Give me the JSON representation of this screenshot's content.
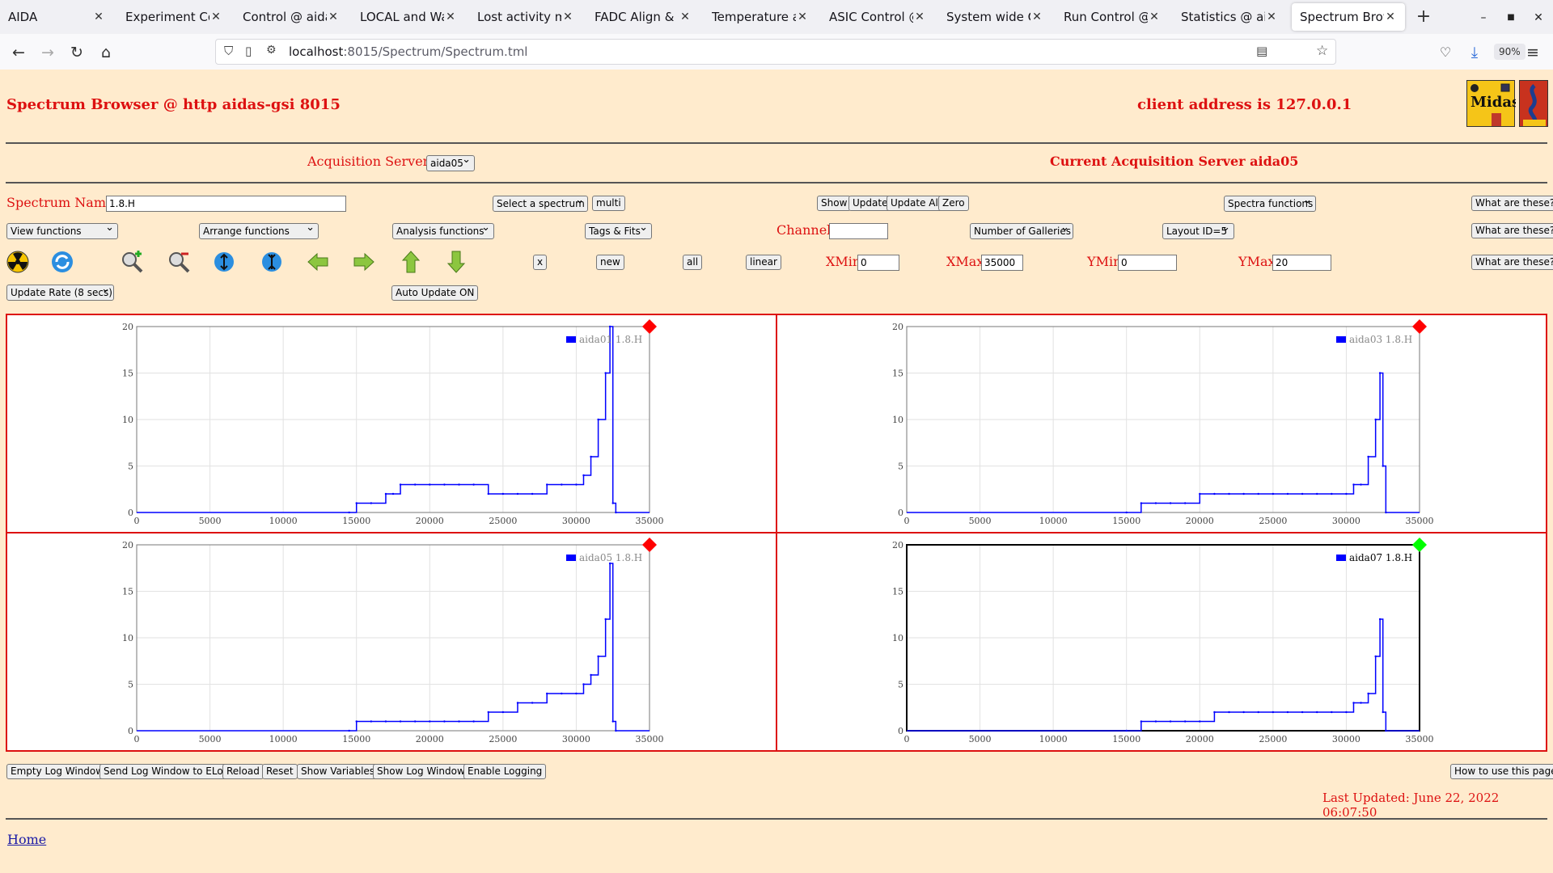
{
  "browser": {
    "tabs": [
      {
        "label": "AIDA",
        "active": false
      },
      {
        "label": "Experiment Cont",
        "active": false
      },
      {
        "label": "Control @ aidas-",
        "active": false
      },
      {
        "label": "LOCAL and Wave",
        "active": false
      },
      {
        "label": "Lost activity mon",
        "active": false
      },
      {
        "label": "FADC Align & Co",
        "active": false
      },
      {
        "label": "Temperature and",
        "active": false
      },
      {
        "label": "ASIC Control @ a",
        "active": false
      },
      {
        "label": "System wide Che",
        "active": false
      },
      {
        "label": "Run Control @ ai",
        "active": false
      },
      {
        "label": "Statistics @ aida",
        "active": false
      },
      {
        "label": "Spectrum Brows",
        "active": true
      }
    ],
    "url_host": "localhost",
    "url_rest": ":8015/Spectrum/Spectrum.tml",
    "zoom": "90%"
  },
  "header": {
    "title": "Spectrum Browser @ http aidas-gsi 8015",
    "client_address": "client address is 127.0.0.1"
  },
  "servers": {
    "label": "Acquisition Servers",
    "selected": "aida05",
    "current": "Current Acquisition Server aida05"
  },
  "controls": {
    "spectrum_name_label": "Spectrum Name:",
    "spectrum_name_value": "1.8.H",
    "select_spectrum": "Select a spectrum",
    "multi": "multi",
    "show": "Show",
    "update": "Update",
    "update_all": "Update All",
    "zero": "Zero",
    "spectra_functions": "Spectra functions",
    "what_are_these": "What are these?",
    "view_functions": "View functions",
    "arrange_functions": "Arrange functions",
    "analysis_functions": "Analysis functions",
    "tags_fits": "Tags & Fits",
    "channel_label": "Channel:",
    "channel_value": "",
    "number_of_galleries": "Number of Galleries",
    "layout": "Layout ID=5",
    "x_btn": "x",
    "new_btn": "new",
    "all_btn": "all",
    "linear_btn": "linear",
    "xmin_label": "XMin",
    "xmin_value": "0",
    "xmax_label": "XMax",
    "xmax_value": "35000",
    "ymin_label": "YMin",
    "ymin_value": "0",
    "ymax_label": "YMax",
    "ymax_value": "20",
    "update_rate": "Update Rate (8 secs)",
    "auto_update": "Auto Update ON"
  },
  "icons": [
    "radiation-icon",
    "refresh-icon",
    "zoom-in-icon",
    "zoom-out-icon",
    "expand-vertical-icon",
    "shrink-vertical-icon",
    "arrow-left-icon",
    "arrow-right-icon",
    "arrow-up-icon",
    "arrow-down-icon"
  ],
  "chart_data": [
    {
      "type": "line",
      "series": [
        {
          "name": "aida01 1.8.H"
        }
      ],
      "status_color": "#ff0000",
      "xlim": [
        0,
        35000
      ],
      "ylim": [
        0,
        20
      ],
      "xticks": [
        0,
        5000,
        10000,
        15000,
        20000,
        25000,
        30000,
        35000
      ],
      "yticks": [
        0,
        5,
        10,
        15,
        20
      ],
      "x": [
        14500,
        15000,
        16000,
        17000,
        17500,
        18000,
        19000,
        20000,
        21000,
        22000,
        23000,
        24000,
        25000,
        26000,
        27000,
        28000,
        29000,
        30000,
        30500,
        31000,
        31500,
        32000,
        32300,
        32500,
        32700
      ],
      "y": [
        0,
        1,
        1,
        2,
        2,
        3,
        3,
        3,
        3,
        3,
        3,
        2,
        2,
        2,
        2,
        3,
        3,
        3,
        4,
        6,
        10,
        15,
        20,
        1,
        0
      ]
    },
    {
      "type": "line",
      "series": [
        {
          "name": "aida03 1.8.H"
        }
      ],
      "status_color": "#ff0000",
      "xlim": [
        0,
        35000
      ],
      "ylim": [
        0,
        20
      ],
      "xticks": [
        0,
        5000,
        10000,
        15000,
        20000,
        25000,
        30000,
        35000
      ],
      "yticks": [
        0,
        5,
        10,
        15,
        20
      ],
      "x": [
        15000,
        16000,
        17000,
        18000,
        19000,
        20000,
        21000,
        22000,
        23000,
        24000,
        25000,
        26000,
        27000,
        28000,
        29000,
        30000,
        30500,
        31000,
        31500,
        32000,
        32300,
        32500,
        32700
      ],
      "y": [
        0,
        1,
        1,
        1,
        1,
        2,
        2,
        2,
        2,
        2,
        2,
        2,
        2,
        2,
        2,
        2,
        3,
        3,
        6,
        10,
        15,
        5,
        0
      ]
    },
    {
      "type": "line",
      "series": [
        {
          "name": "aida05 1.8.H"
        }
      ],
      "status_color": "#ff0000",
      "xlim": [
        0,
        35000
      ],
      "ylim": [
        0,
        20
      ],
      "xticks": [
        0,
        5000,
        10000,
        15000,
        20000,
        25000,
        30000,
        35000
      ],
      "yticks": [
        0,
        5,
        10,
        15,
        20
      ],
      "x": [
        14500,
        15000,
        16000,
        17000,
        18000,
        19000,
        20000,
        21000,
        22000,
        23000,
        24000,
        25000,
        26000,
        27000,
        28000,
        29000,
        30000,
        30500,
        31000,
        31500,
        32000,
        32300,
        32500,
        32700
      ],
      "y": [
        0,
        1,
        1,
        1,
        1,
        1,
        1,
        1,
        1,
        1,
        2,
        2,
        3,
        3,
        4,
        4,
        4,
        5,
        6,
        8,
        12,
        18,
        1,
        0
      ]
    },
    {
      "type": "line",
      "series": [
        {
          "name": "aida07 1.8.H"
        }
      ],
      "status_color": "#00ff00",
      "xlim": [
        0,
        35000
      ],
      "ylim": [
        0,
        20
      ],
      "xticks": [
        0,
        5000,
        10000,
        15000,
        20000,
        25000,
        30000,
        35000
      ],
      "yticks": [
        0,
        5,
        10,
        15,
        20
      ],
      "x": [
        15000,
        16000,
        17000,
        18000,
        19000,
        20000,
        21000,
        22000,
        23000,
        24000,
        25000,
        26000,
        27000,
        28000,
        29000,
        30000,
        30500,
        31000,
        31500,
        32000,
        32300,
        32500,
        32700
      ],
      "y": [
        0,
        1,
        1,
        1,
        1,
        1,
        2,
        2,
        2,
        2,
        2,
        2,
        2,
        2,
        2,
        2,
        3,
        3,
        4,
        8,
        12,
        2,
        0
      ]
    }
  ],
  "footer": {
    "empty_log": "Empty Log Window",
    "send_log": "Send Log Window to ELog",
    "reload": "Reload",
    "reset": "Reset",
    "show_variables": "Show Variables",
    "show_log": "Show Log Window",
    "enable_logging": "Enable Logging",
    "how_to_use": "How to use this page",
    "last_updated": "Last Updated: June 22, 2022 06:07:50",
    "home_link": "Home"
  }
}
